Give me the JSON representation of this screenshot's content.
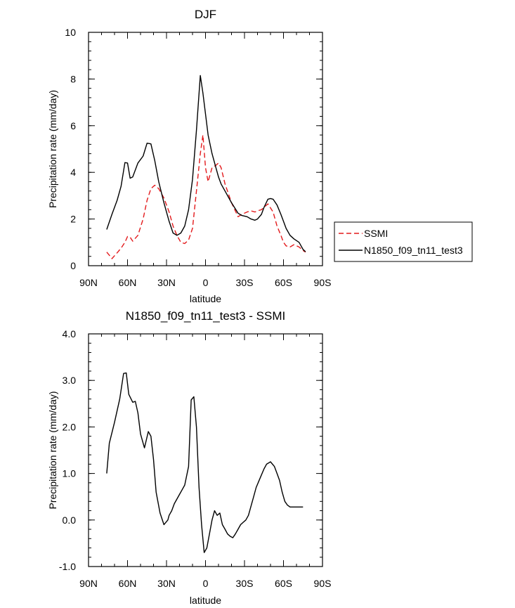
{
  "chart_data": [
    {
      "type": "line",
      "title": "DJF",
      "xlabel": "latitude",
      "ylabel": "Precipitation rate (mm/day)",
      "xlim": [
        90,
        -90
      ],
      "ylim": [
        0,
        10
      ],
      "xticks": [
        90,
        60,
        30,
        0,
        -30,
        -60,
        -90
      ],
      "xtick_labels": [
        "90N",
        "60N",
        "30N",
        "0",
        "30S",
        "60S",
        "90S"
      ],
      "yticks": [
        0,
        2,
        4,
        6,
        8,
        10
      ],
      "ytick_labels": [
        "0",
        "2",
        "4",
        "6",
        "8",
        "10"
      ],
      "legend": {
        "position": "right",
        "entries": [
          "SSMI",
          "N1850_f09_tn11_test3"
        ]
      },
      "series": [
        {
          "name": "SSMI",
          "color": "#e31a1c",
          "dash": "dashed",
          "x": [
            76,
            74,
            72,
            68,
            65,
            62,
            60,
            58,
            56,
            52,
            48,
            45,
            42,
            39,
            36,
            32,
            28,
            25,
            22,
            19,
            16,
            13,
            10,
            7,
            4,
            2,
            0,
            -2,
            -5,
            -8,
            -10,
            -12,
            -15,
            -20,
            -25,
            -28,
            -30,
            -32,
            -35,
            -38,
            -40,
            -43,
            -45,
            -48,
            -52,
            -55,
            -58,
            -60,
            -62,
            -65,
            -68,
            -72,
            -75,
            -77
          ],
          "values": [
            0.58,
            0.45,
            0.3,
            0.55,
            0.75,
            1.0,
            1.25,
            1.22,
            1.05,
            1.3,
            2.0,
            2.8,
            3.3,
            3.45,
            3.3,
            2.9,
            2.3,
            1.7,
            1.3,
            1.0,
            0.95,
            1.1,
            1.6,
            3.2,
            4.8,
            5.6,
            4.2,
            3.6,
            4.2,
            4.3,
            4.4,
            4.2,
            3.5,
            2.7,
            2.1,
            2.2,
            2.25,
            2.3,
            2.35,
            2.3,
            2.35,
            2.4,
            2.5,
            2.65,
            2.3,
            1.7,
            1.3,
            1.0,
            0.85,
            0.8,
            0.9,
            0.8,
            0.65,
            0.58
          ]
        },
        {
          "name": "N1850_f09_tn11_test3",
          "color": "#000000",
          "dash": "solid",
          "x": [
            76,
            72,
            68,
            65,
            62,
            60,
            58,
            56,
            52,
            48,
            45,
            42,
            39,
            36,
            32,
            28,
            25,
            22,
            19,
            16,
            13,
            10,
            7,
            4,
            2,
            0,
            -2,
            -5,
            -8,
            -10,
            -12,
            -15,
            -20,
            -25,
            -28,
            -32,
            -35,
            -38,
            -40,
            -43,
            -45,
            -48,
            -50,
            -52,
            -55,
            -58,
            -60,
            -62,
            -65,
            -68,
            -72,
            -75,
            -77
          ],
          "values": [
            1.55,
            2.2,
            2.8,
            3.4,
            4.42,
            4.4,
            3.75,
            3.8,
            4.4,
            4.7,
            5.25,
            5.22,
            4.5,
            3.6,
            2.7,
            1.9,
            1.4,
            1.3,
            1.4,
            1.7,
            2.4,
            3.7,
            5.8,
            8.15,
            7.4,
            6.5,
            5.6,
            4.8,
            4.2,
            3.8,
            3.5,
            3.2,
            2.7,
            2.25,
            2.15,
            2.1,
            2.0,
            1.95,
            2.0,
            2.2,
            2.5,
            2.85,
            2.88,
            2.85,
            2.6,
            2.2,
            1.9,
            1.6,
            1.3,
            1.15,
            1.0,
            0.7,
            0.6
          ]
        }
      ]
    },
    {
      "type": "line",
      "title": "N1850_f09_tn11_test3 - SSMI",
      "xlabel": "latitude",
      "ylabel": "Precipitation rate (mm/day)",
      "xlim": [
        90,
        -90
      ],
      "ylim": [
        -1.0,
        4.0
      ],
      "xticks": [
        90,
        60,
        30,
        0,
        -30,
        -60,
        -90
      ],
      "xtick_labels": [
        "90N",
        "60N",
        "30N",
        "0",
        "30S",
        "60S",
        "90S"
      ],
      "yticks": [
        -1,
        0,
        1,
        2,
        3,
        4
      ],
      "ytick_labels": [
        "-1.0",
        "0.0",
        "1.0",
        "2.0",
        "3.0",
        "4.0"
      ],
      "series": [
        {
          "name": "N1850_f09_tn11_test3 - SSMI",
          "color": "#000000",
          "dash": "solid",
          "x": [
            76,
            74,
            70,
            66,
            63,
            61,
            59,
            56,
            54,
            52,
            50,
            47,
            44,
            42,
            40,
            38,
            35,
            32,
            29,
            28,
            26,
            24,
            22,
            20,
            18,
            16,
            13,
            11,
            9,
            7,
            5,
            3,
            1,
            -1,
            -3,
            -5,
            -7,
            -9,
            -11,
            -13,
            -15,
            -17,
            -19,
            -21,
            -23,
            -25,
            -27,
            -29,
            -31,
            -33,
            -35,
            -37,
            -39,
            -42,
            -45,
            -47,
            -50,
            -53,
            -55,
            -57,
            -59,
            -61,
            -63,
            -65,
            -67,
            -69,
            -71,
            -73,
            -75
          ],
          "values": [
            1.0,
            1.65,
            2.1,
            2.6,
            3.15,
            3.16,
            2.7,
            2.53,
            2.55,
            2.3,
            1.85,
            1.55,
            1.9,
            1.8,
            1.3,
            0.6,
            0.15,
            -0.1,
            0.0,
            0.1,
            0.2,
            0.35,
            0.45,
            0.55,
            0.65,
            0.75,
            1.15,
            2.58,
            2.65,
            2.0,
            0.7,
            -0.1,
            -0.7,
            -0.6,
            -0.3,
            0.0,
            0.2,
            0.1,
            0.15,
            -0.1,
            -0.2,
            -0.3,
            -0.35,
            -0.38,
            -0.3,
            -0.2,
            -0.1,
            -0.05,
            0.0,
            0.1,
            0.3,
            0.5,
            0.7,
            0.9,
            1.1,
            1.2,
            1.25,
            1.15,
            1.0,
            0.85,
            0.6,
            0.4,
            0.32,
            0.28,
            0.28,
            0.28,
            0.28,
            0.28,
            0.28
          ]
        }
      ]
    }
  ]
}
